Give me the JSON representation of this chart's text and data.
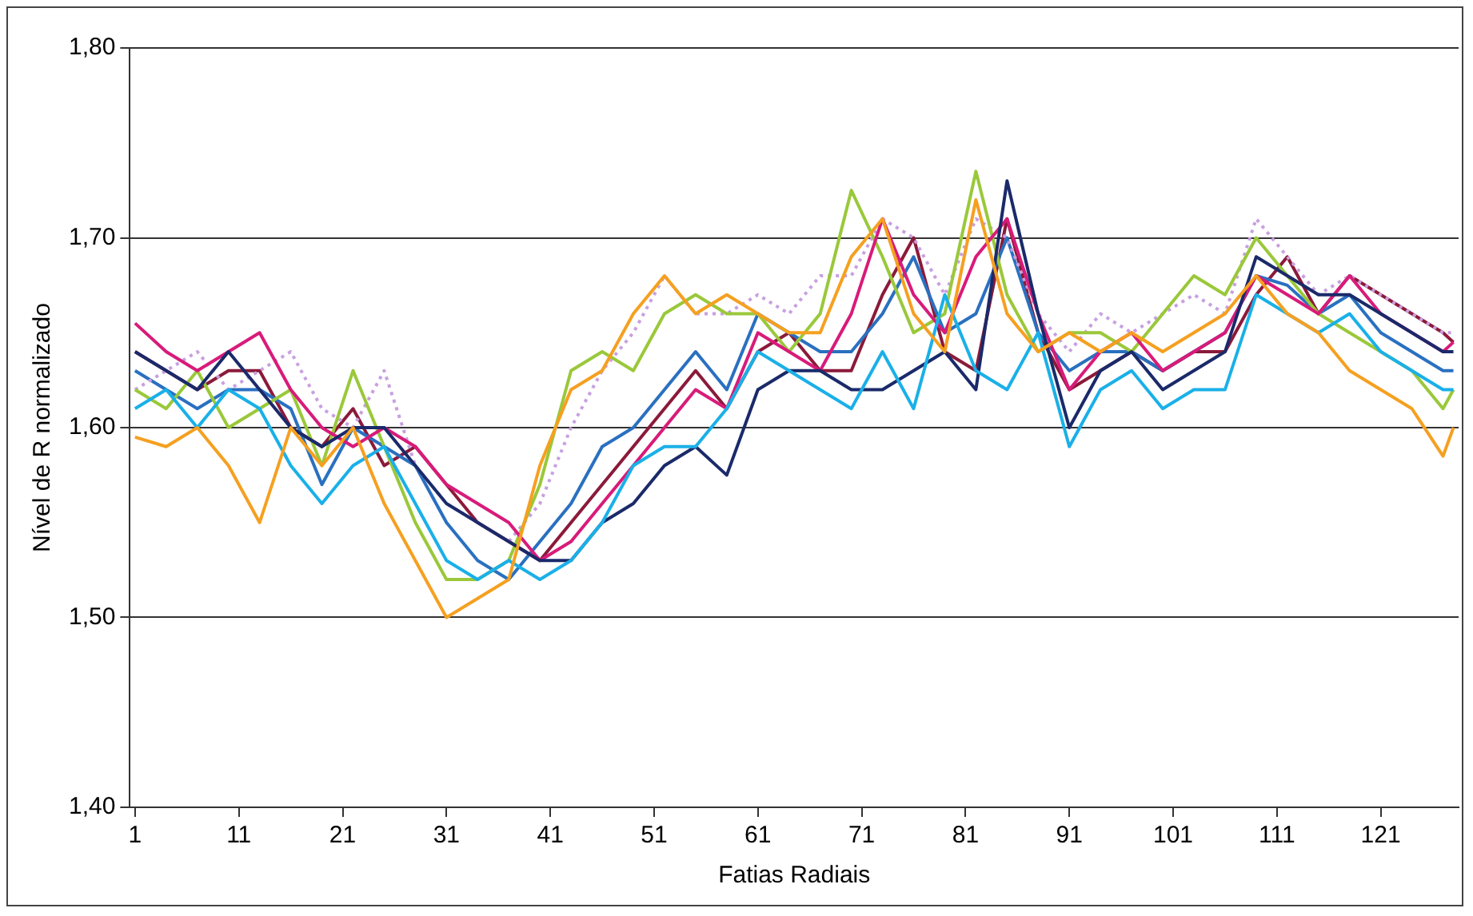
{
  "chart_data": {
    "type": "line",
    "xlabel": "Fatias Radiais",
    "ylabel": "Nível de R normalizado",
    "x": [
      1,
      4,
      7,
      10,
      13,
      16,
      19,
      22,
      25,
      28,
      31,
      34,
      37,
      40,
      43,
      46,
      49,
      52,
      55,
      58,
      61,
      64,
      67,
      70,
      73,
      76,
      79,
      82,
      85,
      88,
      91,
      94,
      97,
      100,
      103,
      106,
      109,
      112,
      115,
      118,
      121,
      124,
      127,
      128
    ],
    "xlim": [
      0.5,
      128.5
    ],
    "xticks": [
      1,
      11,
      21,
      31,
      41,
      51,
      61,
      71,
      81,
      91,
      101,
      111,
      121
    ],
    "ylim": [
      1.4,
      1.8
    ],
    "yticks": [
      {
        "value": 1.4,
        "label": "1,40"
      },
      {
        "value": 1.5,
        "label": "1,50"
      },
      {
        "value": 1.6,
        "label": "1,60"
      },
      {
        "value": 1.7,
        "label": "1,70"
      },
      {
        "value": 1.8,
        "label": "1,80"
      }
    ],
    "grid": "y",
    "legend": false,
    "marker": "none",
    "line_style": "solid",
    "series": [
      {
        "color": "#f5a020",
        "values": [
          1.595,
          1.59,
          1.6,
          1.58,
          1.55,
          1.6,
          1.58,
          1.6,
          1.56,
          1.53,
          1.5,
          1.51,
          1.52,
          1.58,
          1.62,
          1.63,
          1.66,
          1.68,
          1.66,
          1.67,
          1.66,
          1.65,
          1.65,
          1.69,
          1.71,
          1.66,
          1.64,
          1.72,
          1.66,
          1.64,
          1.65,
          1.64,
          1.65,
          1.64,
          1.65,
          1.66,
          1.68,
          1.66,
          1.65,
          1.63,
          1.62,
          1.61,
          1.585,
          1.6
        ]
      },
      {
        "color": "#1ab0e8",
        "values": [
          1.61,
          1.62,
          1.6,
          1.62,
          1.61,
          1.58,
          1.56,
          1.58,
          1.59,
          1.56,
          1.53,
          1.52,
          1.53,
          1.52,
          1.53,
          1.55,
          1.58,
          1.59,
          1.59,
          1.61,
          1.64,
          1.63,
          1.62,
          1.61,
          1.64,
          1.61,
          1.67,
          1.63,
          1.62,
          1.65,
          1.59,
          1.62,
          1.63,
          1.61,
          1.62,
          1.62,
          1.67,
          1.66,
          1.65,
          1.66,
          1.64,
          1.63,
          1.62,
          1.62
        ]
      },
      {
        "color": "#1a2a6a",
        "values": [
          1.64,
          1.63,
          1.62,
          1.64,
          1.62,
          1.6,
          1.59,
          1.6,
          1.6,
          1.58,
          1.56,
          1.55,
          1.54,
          1.53,
          1.53,
          1.55,
          1.56,
          1.58,
          1.59,
          1.575,
          1.62,
          1.63,
          1.63,
          1.62,
          1.62,
          1.63,
          1.64,
          1.62,
          1.73,
          1.66,
          1.6,
          1.63,
          1.64,
          1.62,
          1.63,
          1.64,
          1.69,
          1.68,
          1.67,
          1.67,
          1.66,
          1.65,
          1.64,
          1.64
        ]
      },
      {
        "color": "#d81b7a",
        "values": [
          1.655,
          1.64,
          1.63,
          1.64,
          1.65,
          1.62,
          1.6,
          1.59,
          1.6,
          1.59,
          1.57,
          1.56,
          1.55,
          1.53,
          1.54,
          1.56,
          1.58,
          1.6,
          1.62,
          1.61,
          1.65,
          1.64,
          1.63,
          1.66,
          1.71,
          1.67,
          1.65,
          1.69,
          1.71,
          1.66,
          1.62,
          1.64,
          1.65,
          1.63,
          1.64,
          1.65,
          1.68,
          1.67,
          1.66,
          1.68,
          1.66,
          1.65,
          1.64,
          1.645
        ]
      },
      {
        "color": "#9ac83a",
        "values": [
          1.62,
          1.61,
          1.63,
          1.6,
          1.61,
          1.62,
          1.58,
          1.63,
          1.59,
          1.55,
          1.52,
          1.52,
          1.53,
          1.57,
          1.63,
          1.64,
          1.63,
          1.66,
          1.67,
          1.66,
          1.66,
          1.64,
          1.66,
          1.725,
          1.69,
          1.65,
          1.66,
          1.735,
          1.67,
          1.64,
          1.65,
          1.65,
          1.64,
          1.66,
          1.68,
          1.67,
          1.7,
          1.68,
          1.66,
          1.65,
          1.64,
          1.63,
          1.61,
          1.62
        ]
      },
      {
        "color": "#c8a0e0",
        "line_style": "dotted",
        "values": [
          1.62,
          1.63,
          1.64,
          1.62,
          1.63,
          1.64,
          1.61,
          1.6,
          1.63,
          1.58,
          1.56,
          1.55,
          1.54,
          1.56,
          1.6,
          1.63,
          1.65,
          1.68,
          1.66,
          1.66,
          1.67,
          1.66,
          1.68,
          1.68,
          1.71,
          1.7,
          1.67,
          1.71,
          1.7,
          1.66,
          1.64,
          1.66,
          1.65,
          1.66,
          1.67,
          1.66,
          1.71,
          1.69,
          1.67,
          1.68,
          1.67,
          1.66,
          1.65,
          1.65
        ]
      },
      {
        "color": "#2a70c0",
        "values": [
          1.63,
          1.62,
          1.61,
          1.62,
          1.62,
          1.61,
          1.57,
          1.6,
          1.59,
          1.58,
          1.55,
          1.53,
          1.52,
          1.54,
          1.56,
          1.59,
          1.6,
          1.62,
          1.64,
          1.62,
          1.66,
          1.65,
          1.64,
          1.64,
          1.66,
          1.69,
          1.65,
          1.66,
          1.7,
          1.65,
          1.63,
          1.64,
          1.64,
          1.63,
          1.64,
          1.65,
          1.68,
          1.675,
          1.66,
          1.67,
          1.65,
          1.64,
          1.63,
          1.63
        ]
      },
      {
        "color": "#8b1a3a",
        "values": [
          1.64,
          1.63,
          1.62,
          1.63,
          1.63,
          1.6,
          1.59,
          1.61,
          1.58,
          1.59,
          1.57,
          1.55,
          1.54,
          1.53,
          1.55,
          1.57,
          1.59,
          1.61,
          1.63,
          1.61,
          1.64,
          1.65,
          1.63,
          1.63,
          1.67,
          1.7,
          1.64,
          1.63,
          1.71,
          1.65,
          1.62,
          1.63,
          1.64,
          1.63,
          1.64,
          1.64,
          1.67,
          1.69,
          1.66,
          1.68,
          1.67,
          1.66,
          1.65,
          1.645
        ]
      }
    ]
  }
}
